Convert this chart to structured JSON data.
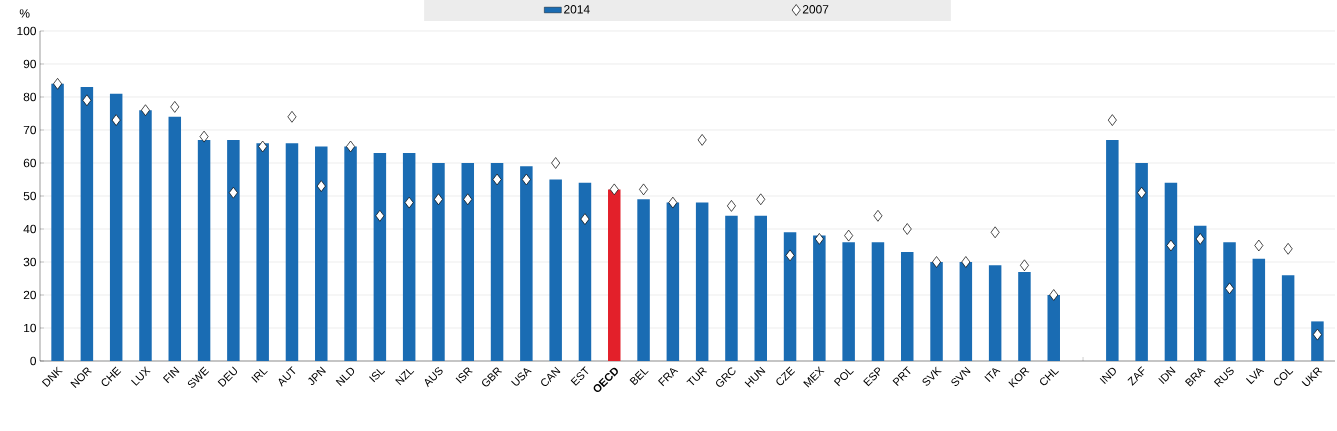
{
  "chart_data": {
    "type": "bar",
    "ylabel": "%",
    "categories": [
      "DNK",
      "NOR",
      "CHE",
      "LUX",
      "FIN",
      "SWE",
      "DEU",
      "IRL",
      "AUT",
      "JPN",
      "NLD",
      "ISL",
      "NZL",
      "AUS",
      "ISR",
      "GBR",
      "USA",
      "CAN",
      "EST",
      "**OECD**",
      "BEL",
      "FRA",
      "TUR",
      "GRC",
      "HUN",
      "CZE",
      "MEX",
      "POL",
      "ESP",
      "PRT",
      "SVK",
      "SVN",
      "ITA",
      "KOR",
      "CHL",
      null,
      "IND",
      "ZAF",
      "IDN",
      "BRA",
      "RUS",
      "LVA",
      "COL",
      "UKR"
    ],
    "series": [
      {
        "name": "2014",
        "color": "#1a6cb3",
        "colors": [
          "#1a6cb3",
          "#1a6cb3",
          "#1a6cb3",
          "#1a6cb3",
          "#1a6cb3",
          "#1a6cb3",
          "#1a6cb3",
          "#1a6cb3",
          "#1a6cb3",
          "#1a6cb3",
          "#1a6cb3",
          "#1a6cb3",
          "#1a6cb3",
          "#1a6cb3",
          "#1a6cb3",
          "#1a6cb3",
          "#1a6cb3",
          "#1a6cb3",
          "#1a6cb3",
          "#e3202a",
          "#1a6cb3",
          "#1a6cb3",
          "#1a6cb3",
          "#1a6cb3",
          "#1a6cb3",
          "#1a6cb3",
          "#1a6cb3",
          "#1a6cb3",
          "#1a6cb3",
          "#1a6cb3",
          "#1a6cb3",
          "#1a6cb3",
          "#1a6cb3",
          "#1a6cb3",
          "#1a6cb3",
          "#1a6cb3",
          "#1a6cb3",
          "#1a6cb3",
          "#1a6cb3",
          "#1a6cb3",
          "#1a6cb3",
          "#1a6cb3",
          "#1a6cb3",
          "#1a6cb3"
        ],
        "values": [
          84,
          83,
          81,
          76,
          74,
          67,
          67,
          66,
          66,
          65,
          65,
          63,
          63,
          60,
          60,
          60,
          59,
          55,
          54,
          52,
          49,
          48,
          48,
          44,
          44,
          39,
          38,
          36,
          36,
          33,
          30,
          30,
          29,
          27,
          20,
          null,
          67,
          60,
          54,
          41,
          36,
          31,
          26,
          12
        ]
      },
      {
        "name": "2007",
        "type": "scatter",
        "marker": "diamond",
        "color": "#000000",
        "values": [
          84,
          79,
          73,
          76,
          77,
          68,
          51,
          65,
          74,
          53,
          65,
          44,
          48,
          49,
          49,
          55,
          55,
          60,
          43,
          52,
          52,
          48,
          67,
          47,
          49,
          32,
          37,
          38,
          44,
          40,
          30,
          30,
          39,
          29,
          20,
          null,
          73,
          51,
          35,
          37,
          22,
          35,
          34,
          8
        ]
      }
    ],
    "ylim": [
      0,
      100
    ],
    "yticks": [
      0,
      10,
      20,
      30,
      40,
      50,
      60,
      70,
      80,
      90,
      100
    ],
    "grid": "y",
    "legend": "top"
  }
}
